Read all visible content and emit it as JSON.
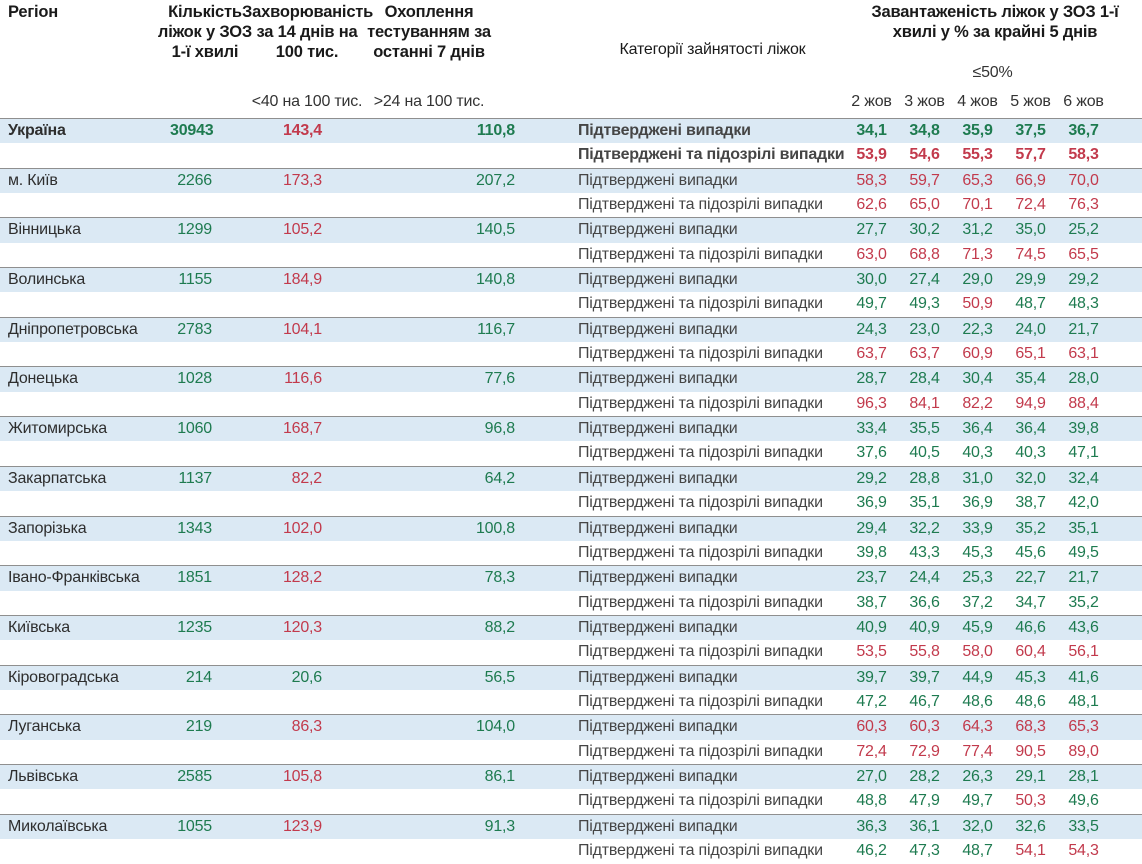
{
  "table": {
    "columns": {
      "region": "Регіон",
      "beds": "Кількість ліжок у ЗОЗ 1-ї хвилі",
      "incidence": "Захворюваність за 14 днів на 100 тис.",
      "incidence_sub": "<40 на 100 тис.",
      "testing": "Охоплення тестуванням за останні 7 днів",
      "testing_sub": ">24 на 100 тис.",
      "category": "Категорії зайнятості ліжок",
      "occupancy": "Завантаженість ліжок у ЗОЗ 1-ї хвилі у % за крайні 5 днів",
      "occupancy_sub": "≤50%",
      "dates": [
        "2 жов",
        "3 жов",
        "4 жов",
        "5 жов",
        "6 жов"
      ]
    },
    "row_labels": {
      "confirmed": "Підтверджені випадки",
      "suspected": "Підтверджені та підозрілі випадки"
    },
    "thresholds": {
      "occupancy_red_above": 50,
      "incidence_green_below": 40,
      "testing_green_above": 24
    },
    "colors": {
      "green": "#1e7b50",
      "red": "#c23a4c",
      "row_blue": "#dbe9f4",
      "border": "#8f8f8f"
    },
    "regions": [
      {
        "name": "Україна",
        "bold": true,
        "beds": "30943",
        "incidence": "143,4",
        "testing": "110,8",
        "confirmed": [
          "34,1",
          "34,8",
          "35,9",
          "37,5",
          "36,7"
        ],
        "suspected": [
          "53,9",
          "54,6",
          "55,3",
          "57,7",
          "58,3"
        ]
      },
      {
        "name": "м. Київ",
        "bold": false,
        "beds": "2266",
        "incidence": "173,3",
        "testing": "207,2",
        "confirmed": [
          "58,3",
          "59,7",
          "65,3",
          "66,9",
          "70,0"
        ],
        "suspected": [
          "62,6",
          "65,0",
          "70,1",
          "72,4",
          "76,3"
        ]
      },
      {
        "name": "Вінницька",
        "bold": false,
        "beds": "1299",
        "incidence": "105,2",
        "testing": "140,5",
        "confirmed": [
          "27,7",
          "30,2",
          "31,2",
          "35,0",
          "25,2"
        ],
        "suspected": [
          "63,0",
          "68,8",
          "71,3",
          "74,5",
          "65,5"
        ]
      },
      {
        "name": "Волинська",
        "bold": false,
        "beds": "1155",
        "incidence": "184,9",
        "testing": "140,8",
        "confirmed": [
          "30,0",
          "27,4",
          "29,0",
          "29,9",
          "29,2"
        ],
        "suspected": [
          "49,7",
          "49,3",
          "50,9",
          "48,7",
          "48,3"
        ]
      },
      {
        "name": "Дніпропетровська",
        "bold": false,
        "beds": "2783",
        "incidence": "104,1",
        "testing": "116,7",
        "confirmed": [
          "24,3",
          "23,0",
          "22,3",
          "24,0",
          "21,7"
        ],
        "suspected": [
          "63,7",
          "63,7",
          "60,9",
          "65,1",
          "63,1"
        ]
      },
      {
        "name": "Донецька",
        "bold": false,
        "beds": "1028",
        "incidence": "116,6",
        "testing": "77,6",
        "confirmed": [
          "28,7",
          "28,4",
          "30,4",
          "35,4",
          "28,0"
        ],
        "suspected": [
          "96,3",
          "84,1",
          "82,2",
          "94,9",
          "88,4"
        ]
      },
      {
        "name": "Житомирська",
        "bold": false,
        "beds": "1060",
        "incidence": "168,7",
        "testing": "96,8",
        "confirmed": [
          "33,4",
          "35,5",
          "36,4",
          "36,4",
          "39,8"
        ],
        "suspected": [
          "37,6",
          "40,5",
          "40,3",
          "40,3",
          "47,1"
        ]
      },
      {
        "name": "Закарпатська",
        "bold": false,
        "beds": "1137",
        "incidence": "82,2",
        "testing": "64,2",
        "confirmed": [
          "29,2",
          "28,8",
          "31,0",
          "32,0",
          "32,4"
        ],
        "suspected": [
          "36,9",
          "35,1",
          "36,9",
          "38,7",
          "42,0"
        ]
      },
      {
        "name": "Запорізька",
        "bold": false,
        "beds": "1343",
        "incidence": "102,0",
        "testing": "100,8",
        "confirmed": [
          "29,4",
          "32,2",
          "33,9",
          "35,2",
          "35,1"
        ],
        "suspected": [
          "39,8",
          "43,3",
          "45,3",
          "45,6",
          "49,5"
        ]
      },
      {
        "name": "Івано-Франківська",
        "bold": false,
        "beds": "1851",
        "incidence": "128,2",
        "testing": "78,3",
        "confirmed": [
          "23,7",
          "24,4",
          "25,3",
          "22,7",
          "21,7"
        ],
        "suspected": [
          "38,7",
          "36,6",
          "37,2",
          "34,7",
          "35,2"
        ]
      },
      {
        "name": "Київська",
        "bold": false,
        "beds": "1235",
        "incidence": "120,3",
        "testing": "88,2",
        "confirmed": [
          "40,9",
          "40,9",
          "45,9",
          "46,6",
          "43,6"
        ],
        "suspected": [
          "53,5",
          "55,8",
          "58,0",
          "60,4",
          "56,1"
        ]
      },
      {
        "name": "Кіровоградська",
        "bold": false,
        "beds": "214",
        "incidence": "20,6",
        "testing": "56,5",
        "confirmed": [
          "39,7",
          "39,7",
          "44,9",
          "45,3",
          "41,6"
        ],
        "suspected": [
          "47,2",
          "46,7",
          "48,6",
          "48,6",
          "48,1"
        ]
      },
      {
        "name": "Луганська",
        "bold": false,
        "beds": "219",
        "incidence": "86,3",
        "testing": "104,0",
        "confirmed": [
          "60,3",
          "60,3",
          "64,3",
          "68,3",
          "65,3"
        ],
        "suspected": [
          "72,4",
          "72,9",
          "77,4",
          "90,5",
          "89,0"
        ]
      },
      {
        "name": "Львівська",
        "bold": false,
        "beds": "2585",
        "incidence": "105,8",
        "testing": "86,1",
        "confirmed": [
          "27,0",
          "28,2",
          "26,3",
          "29,1",
          "28,1"
        ],
        "suspected": [
          "48,8",
          "47,9",
          "49,7",
          "50,3",
          "49,6"
        ]
      },
      {
        "name": "Миколаївська",
        "bold": false,
        "beds": "1055",
        "incidence": "123,9",
        "testing": "91,3",
        "confirmed": [
          "36,3",
          "36,1",
          "32,0",
          "32,6",
          "33,5"
        ],
        "suspected": [
          "46,2",
          "47,3",
          "48,7",
          "54,1",
          "54,3"
        ]
      }
    ]
  }
}
